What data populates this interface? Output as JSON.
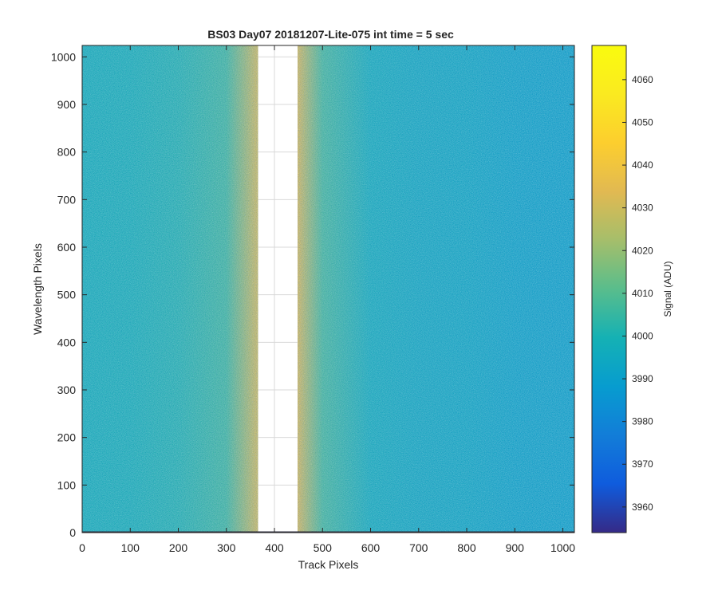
{
  "chart_data": {
    "type": "heatmap",
    "title": "BS03 Day07 20181207-Lite-075 int time = 5 sec",
    "xlabel": "Track Pixels",
    "ylabel": "Wavelength Pixels",
    "xlim": [
      0,
      1024
    ],
    "ylim": [
      0,
      1024
    ],
    "xticks": [
      0,
      100,
      200,
      300,
      400,
      500,
      600,
      700,
      800,
      900,
      1000
    ],
    "yticks": [
      0,
      100,
      200,
      300,
      400,
      500,
      600,
      700,
      800,
      900,
      1000
    ],
    "masked_column_range": [
      366,
      448
    ],
    "colorbar": {
      "label": "Signal (ADU)",
      "range": [
        3954,
        4068
      ],
      "ticks": [
        3960,
        3970,
        3980,
        3990,
        4000,
        4010,
        4020,
        4030,
        4040,
        4050,
        4060
      ],
      "colormap": "parula"
    },
    "signal_profile_by_track": [
      {
        "x": 0,
        "value": 3999
      },
      {
        "x": 100,
        "value": 4000
      },
      {
        "x": 200,
        "value": 4002
      },
      {
        "x": 300,
        "value": 4007
      },
      {
        "x": 360,
        "value": 4030
      },
      {
        "x": 450,
        "value": 4032
      },
      {
        "x": 500,
        "value": 4008
      },
      {
        "x": 600,
        "value": 3998
      },
      {
        "x": 700,
        "value": 3996
      },
      {
        "x": 800,
        "value": 3995
      },
      {
        "x": 900,
        "value": 3993
      },
      {
        "x": 1024,
        "value": 3992
      }
    ],
    "grid": true,
    "legend": "none"
  }
}
